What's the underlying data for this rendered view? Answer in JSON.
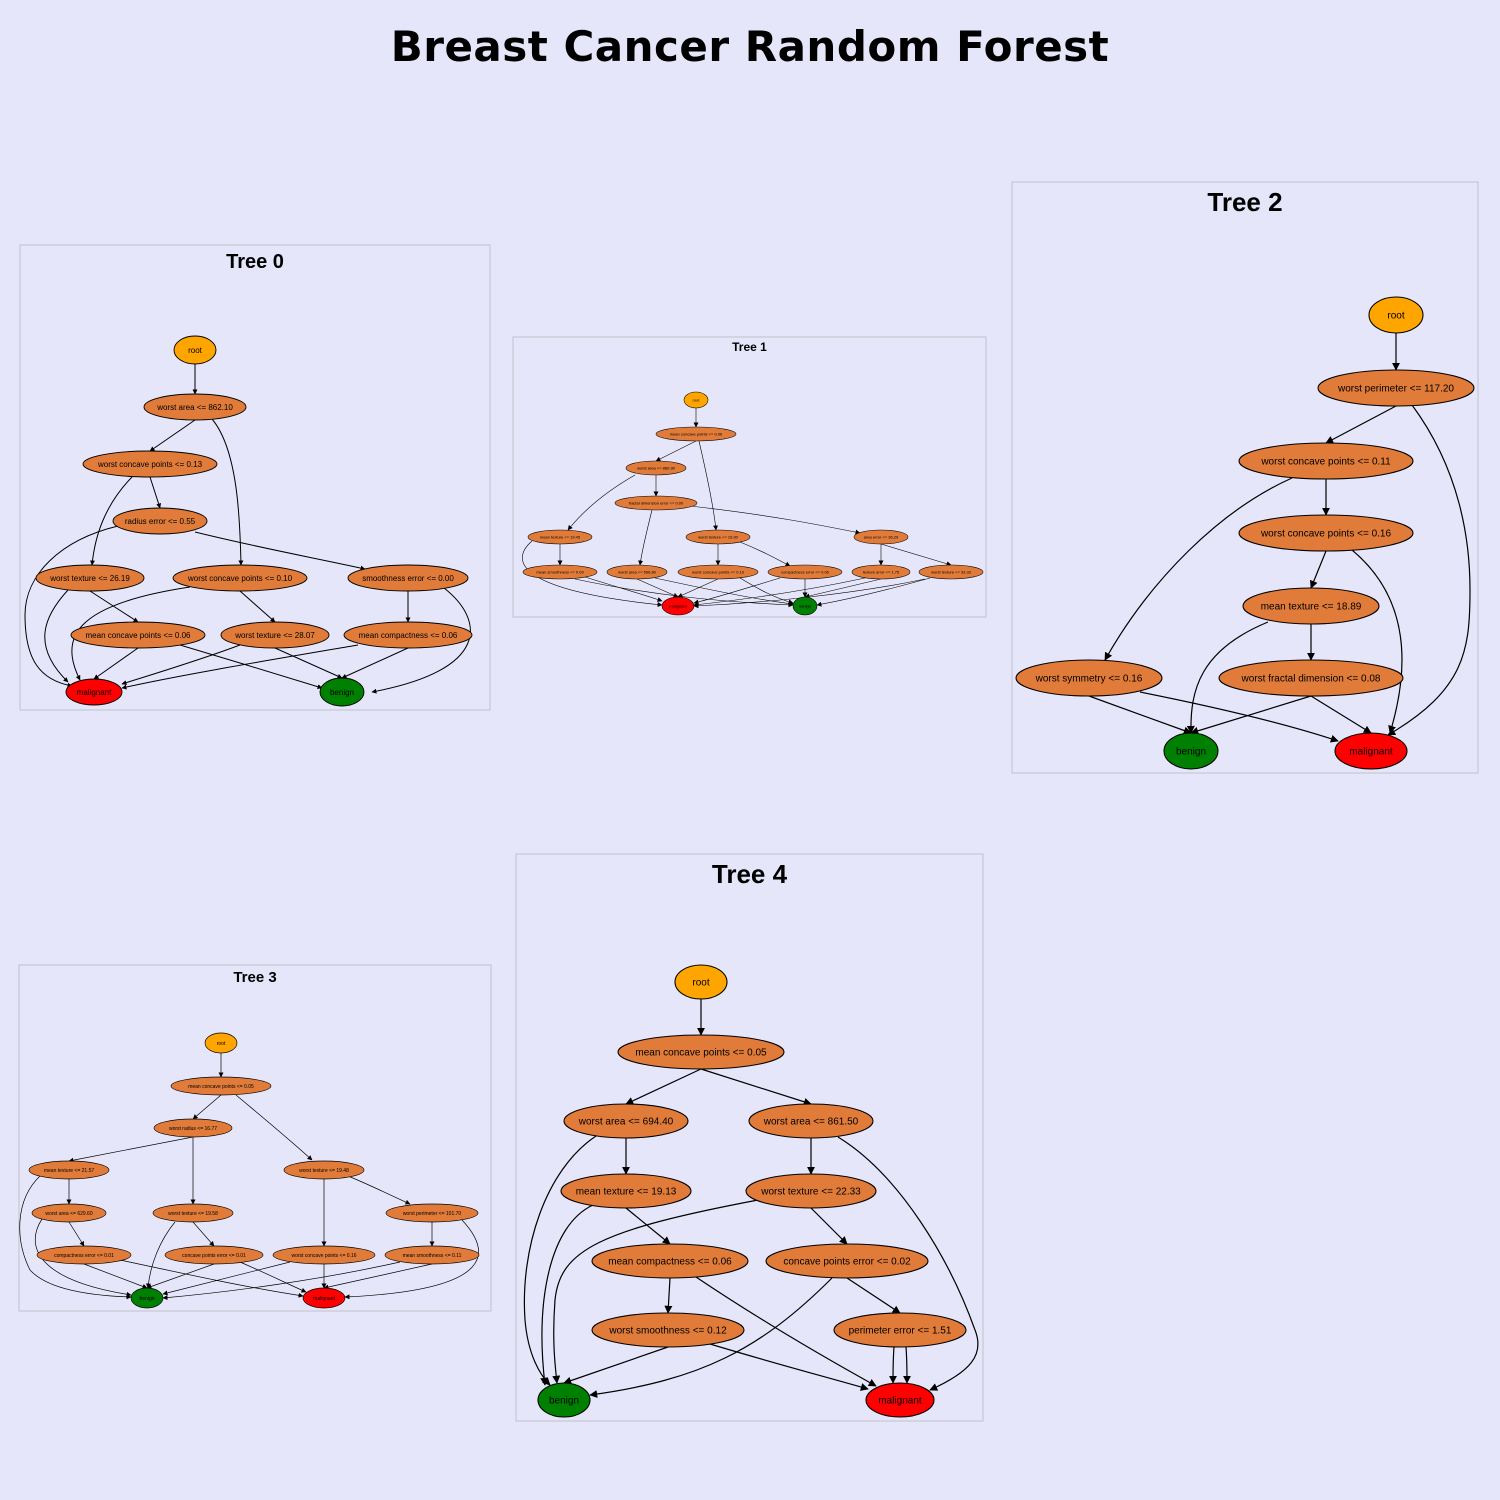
{
  "title": "Breast Cancer Random Forest",
  "colors": {
    "background": "#e6e6fa",
    "root": "#ffa500",
    "split": "#e07b39",
    "benign": "#008000",
    "malignant": "#ff0000"
  },
  "trees": [
    {
      "title": "Tree 0",
      "nodes": [
        {
          "id": "root",
          "label": "root",
          "kind": "root"
        },
        {
          "id": "a",
          "label": "worst area <= 862.10",
          "kind": "split"
        },
        {
          "id": "b",
          "label": "worst concave points <= 0.13",
          "kind": "split"
        },
        {
          "id": "c",
          "label": "radius error <= 0.55",
          "kind": "split"
        },
        {
          "id": "d",
          "label": "worst texture <= 26.19",
          "kind": "split"
        },
        {
          "id": "e",
          "label": "worst concave points <= 0.10",
          "kind": "split"
        },
        {
          "id": "f",
          "label": "smoothness error <= 0.00",
          "kind": "split"
        },
        {
          "id": "g",
          "label": "mean concave points <= 0.06",
          "kind": "split"
        },
        {
          "id": "h",
          "label": "worst texture <= 28.07",
          "kind": "split"
        },
        {
          "id": "i",
          "label": "mean compactness <= 0.06",
          "kind": "split"
        },
        {
          "id": "mal",
          "label": "malignant",
          "kind": "malignant"
        },
        {
          "id": "ben",
          "label": "benign",
          "kind": "benign"
        }
      ]
    },
    {
      "title": "Tree 1",
      "nodes": [
        {
          "id": "root",
          "label": "root",
          "kind": "root"
        },
        {
          "id": "a",
          "label": "mean concave points <= 0.06",
          "kind": "split"
        },
        {
          "id": "b",
          "label": "worst area <= 880.90",
          "kind": "split"
        },
        {
          "id": "c",
          "label": "fractal dimension error <= 0.00",
          "kind": "split"
        },
        {
          "id": "d",
          "label": "mean texture <= 19.45",
          "kind": "split"
        },
        {
          "id": "e",
          "label": "worst texture <= 19.90",
          "kind": "split"
        },
        {
          "id": "f",
          "label": "area error <= 36.29",
          "kind": "split"
        },
        {
          "id": "g",
          "label": "mean smoothness <= 0.09",
          "kind": "split"
        },
        {
          "id": "h",
          "label": "worst area <= 566.80",
          "kind": "split"
        },
        {
          "id": "i",
          "label": "worst concave points <= 0.19",
          "kind": "split"
        },
        {
          "id": "j",
          "label": "compactness error <= 0.06",
          "kind": "split"
        },
        {
          "id": "k",
          "label": "texture error <= 1.75",
          "kind": "split"
        },
        {
          "id": "l",
          "label": "worst texture <= 33.33",
          "kind": "split"
        },
        {
          "id": "mal",
          "label": "malignant",
          "kind": "malignant"
        },
        {
          "id": "ben",
          "label": "benign",
          "kind": "benign"
        }
      ]
    },
    {
      "title": "Tree 2",
      "nodes": [
        {
          "id": "root",
          "label": "root",
          "kind": "root"
        },
        {
          "id": "a",
          "label": "worst perimeter <= 117.20",
          "kind": "split"
        },
        {
          "id": "b",
          "label": "worst concave points <= 0.11",
          "kind": "split"
        },
        {
          "id": "c",
          "label": "worst concave points <= 0.16",
          "kind": "split"
        },
        {
          "id": "d",
          "label": "mean texture <= 18.89",
          "kind": "split"
        },
        {
          "id": "e",
          "label": "worst symmetry <= 0.16",
          "kind": "split"
        },
        {
          "id": "f",
          "label": "worst fractal dimension <= 0.08",
          "kind": "split"
        },
        {
          "id": "ben",
          "label": "benign",
          "kind": "benign"
        },
        {
          "id": "mal",
          "label": "malignant",
          "kind": "malignant"
        }
      ]
    },
    {
      "title": "Tree 3",
      "nodes": [
        {
          "id": "root",
          "label": "root",
          "kind": "root"
        },
        {
          "id": "a",
          "label": "mean concave points <= 0.05",
          "kind": "split"
        },
        {
          "id": "b",
          "label": "worst radius <= 16.77",
          "kind": "split"
        },
        {
          "id": "c",
          "label": "mean texture <= 21.57",
          "kind": "split"
        },
        {
          "id": "d",
          "label": "worst texture <= 19.48",
          "kind": "split"
        },
        {
          "id": "e",
          "label": "worst area <= 629.60",
          "kind": "split"
        },
        {
          "id": "f",
          "label": "worst texture <= 19.58",
          "kind": "split"
        },
        {
          "id": "g",
          "label": "worst perimeter <= 101.70",
          "kind": "split"
        },
        {
          "id": "h",
          "label": "compactness error <= 0.01",
          "kind": "split"
        },
        {
          "id": "i",
          "label": "concave points error <= 0.01",
          "kind": "split"
        },
        {
          "id": "j",
          "label": "worst concave points <= 0.16",
          "kind": "split"
        },
        {
          "id": "k",
          "label": "mean smoothness <= 0.11",
          "kind": "split"
        },
        {
          "id": "ben",
          "label": "benign",
          "kind": "benign"
        },
        {
          "id": "mal",
          "label": "malignant",
          "kind": "malignant"
        }
      ]
    },
    {
      "title": "Tree 4",
      "nodes": [
        {
          "id": "root",
          "label": "root",
          "kind": "root"
        },
        {
          "id": "a",
          "label": "mean concave points <= 0.05",
          "kind": "split"
        },
        {
          "id": "b",
          "label": "worst area <= 694.40",
          "kind": "split"
        },
        {
          "id": "c",
          "label": "worst area <= 861.50",
          "kind": "split"
        },
        {
          "id": "d",
          "label": "mean texture <= 19.13",
          "kind": "split"
        },
        {
          "id": "e",
          "label": "worst texture <= 22.33",
          "kind": "split"
        },
        {
          "id": "f",
          "label": "mean compactness <= 0.06",
          "kind": "split"
        },
        {
          "id": "g",
          "label": "concave points error <= 0.02",
          "kind": "split"
        },
        {
          "id": "h",
          "label": "worst smoothness <= 0.12",
          "kind": "split"
        },
        {
          "id": "i",
          "label": "perimeter error <= 1.51",
          "kind": "split"
        },
        {
          "id": "ben",
          "label": "benign",
          "kind": "benign"
        },
        {
          "id": "mal",
          "label": "malignant",
          "kind": "malignant"
        }
      ]
    }
  ]
}
